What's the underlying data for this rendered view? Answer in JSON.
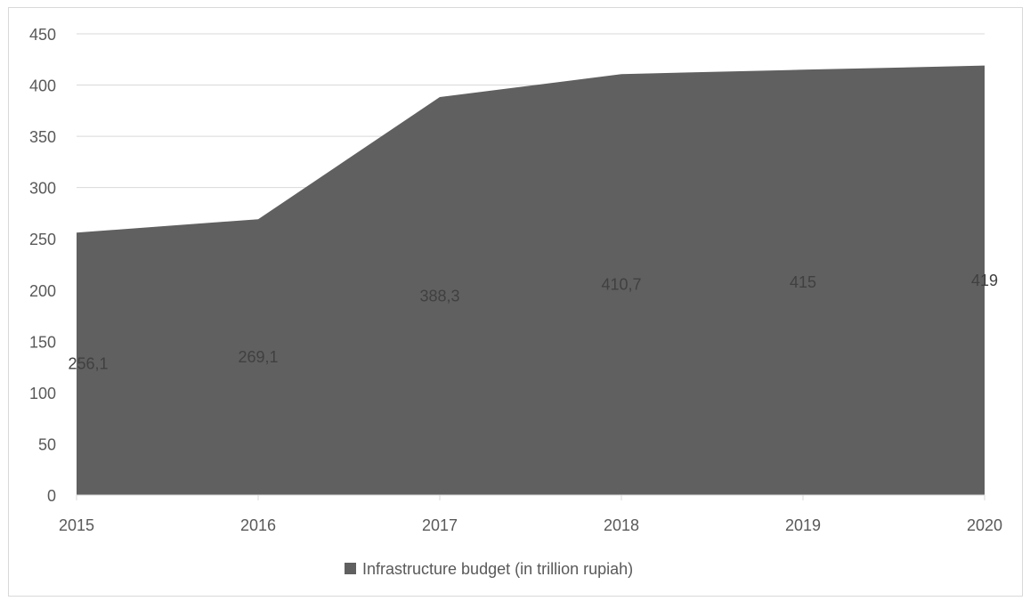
{
  "chart_data": {
    "type": "area",
    "title": "",
    "xlabel": "",
    "ylabel": "",
    "x": [
      "2015",
      "2016",
      "2017",
      "2018",
      "2019",
      "2020"
    ],
    "series": [
      {
        "name": "Infrastructure budget (in trillion rupiah)",
        "values": [
          256.1,
          269.1,
          388.3,
          410.7,
          415,
          419
        ],
        "data_labels": [
          "256,1",
          "269,1",
          "388,3",
          "410,7",
          "415",
          "419"
        ],
        "color": "#606060"
      }
    ],
    "ylim": [
      0,
      450
    ],
    "y_ticks": [
      0,
      50,
      100,
      150,
      200,
      250,
      300,
      350,
      400,
      450
    ],
    "grid": true,
    "legend_position": "bottom"
  }
}
